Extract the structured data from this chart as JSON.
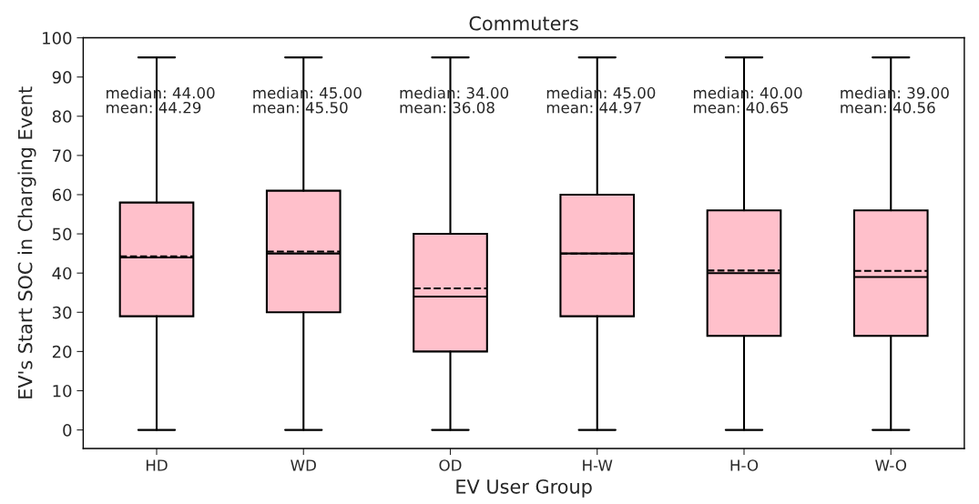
{
  "chart_data": {
    "type": "box",
    "title": "Commuters",
    "xlabel": "EV User Group",
    "ylabel": "EV's Start SOC in Charging Event",
    "categories": [
      "HD",
      "WD",
      "OD",
      "H-W",
      "H-O",
      "W-O"
    ],
    "color": "#ffc0cb",
    "boxes": [
      {
        "low": 0,
        "q1": 29,
        "median": 44,
        "q3": 58,
        "high": 95,
        "mean": 44.29
      },
      {
        "low": 0,
        "q1": 30,
        "median": 45,
        "q3": 61,
        "high": 95,
        "mean": 45.5
      },
      {
        "low": 0,
        "q1": 20,
        "median": 34,
        "q3": 50,
        "high": 95,
        "mean": 36.08
      },
      {
        "low": 0,
        "q1": 29,
        "median": 45,
        "q3": 60,
        "high": 95,
        "mean": 44.97
      },
      {
        "low": 0,
        "q1": 24,
        "median": 40,
        "q3": 56,
        "high": 95,
        "mean": 40.65
      },
      {
        "low": 0,
        "q1": 24,
        "median": 39,
        "q3": 56,
        "high": 95,
        "mean": 40.56
      }
    ],
    "annotations": [
      "median: 44.00\nmean: 44.29",
      "median: 45.00\nmean: 45.50",
      "median: 34.00\nmean: 36.08",
      "median: 45.00\nmean: 44.97",
      "median: 40.00\nmean: 40.65",
      "median: 39.00\nmean: 40.56"
    ],
    "ylim": [
      -4.75,
      100
    ],
    "yticks": [
      0,
      10,
      20,
      30,
      40,
      50,
      60,
      70,
      80,
      90,
      100
    ],
    "grid": false,
    "legend": false
  }
}
